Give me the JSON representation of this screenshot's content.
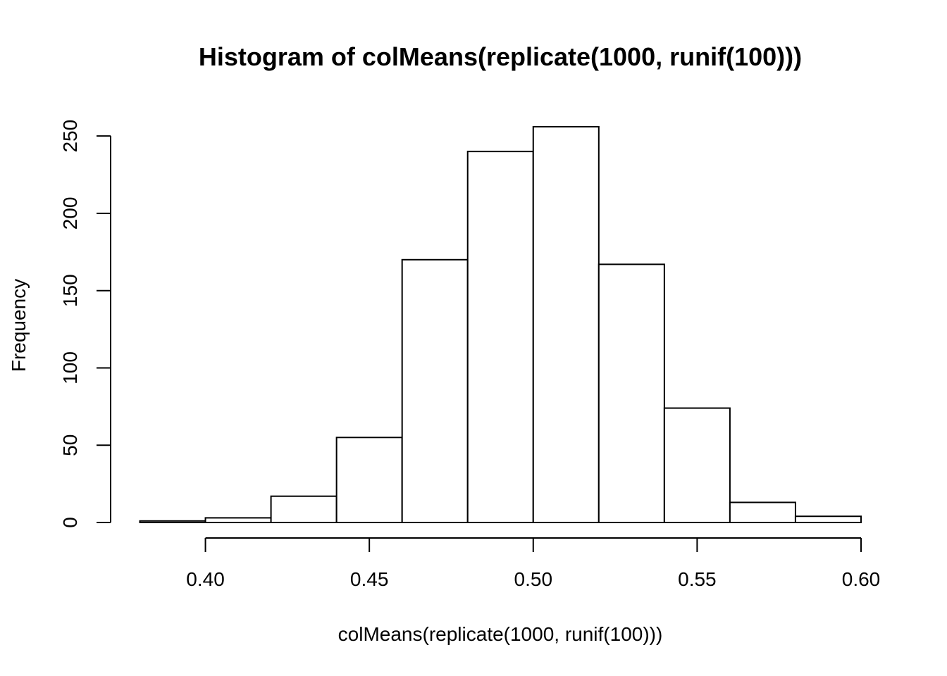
{
  "chart_data": {
    "type": "bar",
    "title": "Histogram of colMeans(replicate(1000, runif(100)))",
    "xlabel": "colMeans(replicate(1000, runif(100)))",
    "ylabel": "Frequency",
    "bins": [
      {
        "start": 0.38,
        "end": 0.4,
        "count": 1
      },
      {
        "start": 0.4,
        "end": 0.42,
        "count": 3
      },
      {
        "start": 0.42,
        "end": 0.44,
        "count": 17
      },
      {
        "start": 0.44,
        "end": 0.46,
        "count": 55
      },
      {
        "start": 0.46,
        "end": 0.48,
        "count": 170
      },
      {
        "start": 0.48,
        "end": 0.5,
        "count": 240
      },
      {
        "start": 0.5,
        "end": 0.52,
        "count": 256
      },
      {
        "start": 0.52,
        "end": 0.54,
        "count": 167
      },
      {
        "start": 0.54,
        "end": 0.56,
        "count": 74
      },
      {
        "start": 0.56,
        "end": 0.58,
        "count": 13
      },
      {
        "start": 0.58,
        "end": 0.6,
        "count": 4
      }
    ],
    "xlim": [
      0.38,
      0.6
    ],
    "ylim": [
      0,
      256
    ],
    "x_ticks": [
      {
        "value": 0.4,
        "label": "0.40"
      },
      {
        "value": 0.45,
        "label": "0.45"
      },
      {
        "value": 0.5,
        "label": "0.50"
      },
      {
        "value": 0.55,
        "label": "0.55"
      },
      {
        "value": 0.6,
        "label": "0.60"
      }
    ],
    "y_ticks": [
      {
        "value": 0,
        "label": "0"
      },
      {
        "value": 50,
        "label": "50"
      },
      {
        "value": 100,
        "label": "100"
      },
      {
        "value": 150,
        "label": "150"
      },
      {
        "value": 200,
        "label": "200"
      },
      {
        "value": 250,
        "label": "250"
      }
    ],
    "grid": false,
    "legend": "none",
    "bar_fill": "#ffffff",
    "bar_stroke": "#000000"
  }
}
